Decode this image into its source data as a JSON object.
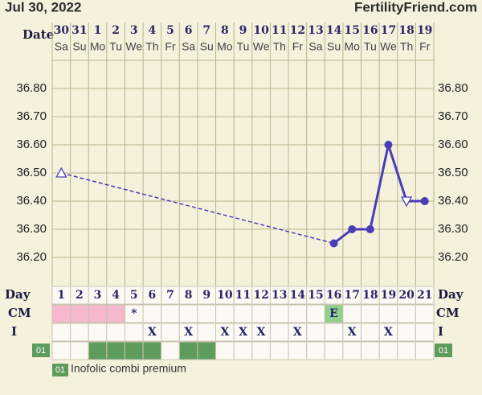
{
  "header": {
    "date": "Jul 30, 2022",
    "site": "FertilityFriend.com"
  },
  "chart_data": {
    "type": "line",
    "date_label": "Date",
    "dates": [
      "30",
      "31",
      "1",
      "2",
      "3",
      "4",
      "5",
      "6",
      "7",
      "8",
      "9",
      "10",
      "11",
      "12",
      "13",
      "14",
      "15",
      "16",
      "17",
      "18",
      "19"
    ],
    "weekdays": [
      "Sa",
      "Su",
      "Mo",
      "Tu",
      "We",
      "Th",
      "Fr",
      "Sa",
      "Su",
      "Mo",
      "Tu",
      "We",
      "Th",
      "Fr",
      "Sa",
      "Su",
      "Mo",
      "Tu",
      "We",
      "Th",
      "Fr"
    ],
    "x": [
      1,
      2,
      3,
      4,
      5,
      6,
      7,
      8,
      9,
      10,
      11,
      12,
      13,
      14,
      15,
      16,
      17,
      18,
      19,
      20,
      21
    ],
    "series": [
      {
        "color": "#4a3cb5",
        "values": [
          36.5,
          null,
          null,
          null,
          null,
          null,
          null,
          null,
          null,
          null,
          null,
          null,
          null,
          null,
          null,
          36.25,
          36.3,
          36.3,
          36.6,
          36.4,
          36.4
        ],
        "markers": [
          "triangle-up",
          null,
          null,
          null,
          null,
          null,
          null,
          null,
          null,
          null,
          null,
          null,
          null,
          null,
          null,
          "circle",
          "circle",
          "circle",
          "circle",
          "triangle-down",
          "circle"
        ]
      }
    ],
    "ylim": [
      36.1,
      36.9
    ],
    "yticks": [
      {
        "value": 36.2,
        "label": "36.20"
      },
      {
        "value": 36.3,
        "label": "36.30"
      },
      {
        "value": 36.4,
        "label": "36.40"
      },
      {
        "value": 36.5,
        "label": "36.50"
      },
      {
        "value": 36.6,
        "label": "36.60"
      },
      {
        "value": 36.7,
        "label": "36.70"
      },
      {
        "value": 36.8,
        "label": "36.80"
      }
    ],
    "grid": true
  },
  "table": {
    "day_label": "Day",
    "cm_label": "CM",
    "i_label": "I",
    "cm_marks": [
      null,
      null,
      null,
      null,
      "*",
      null,
      null,
      null,
      null,
      null,
      null,
      null,
      null,
      null,
      null,
      "E",
      null,
      null,
      null,
      null,
      null
    ],
    "cm_colors": [
      "#f5b8cc",
      "#f5b8cc",
      "#f5b8cc",
      "#f5b8cc",
      null,
      null,
      null,
      null,
      null,
      null,
      null,
      null,
      null,
      null,
      null,
      "#8fd08f",
      null,
      null,
      null,
      null,
      null
    ],
    "intercourse": [
      null,
      null,
      null,
      null,
      null,
      "X",
      null,
      "X",
      null,
      "X",
      "X",
      "X",
      null,
      "X",
      null,
      null,
      "X",
      null,
      "X",
      null,
      null
    ],
    "med_code": "01",
    "med_color": "#5e9c5e",
    "med_taken": [
      false,
      false,
      true,
      true,
      true,
      true,
      false,
      true,
      true,
      false,
      false,
      false,
      false,
      false,
      false,
      false,
      false,
      false,
      false,
      false,
      false
    ],
    "med_name": "Inofolic combi premium"
  }
}
